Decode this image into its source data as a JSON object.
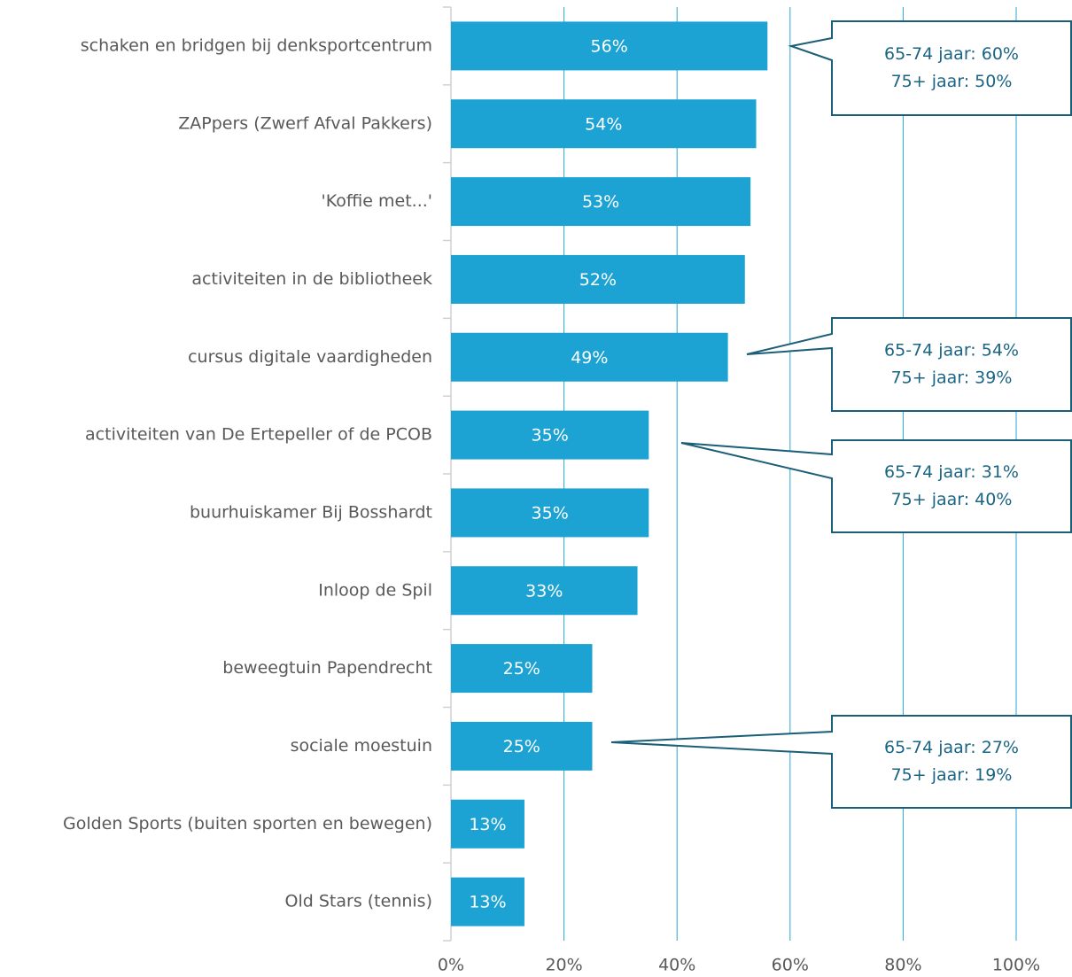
{
  "chart_data": {
    "type": "hbar",
    "categories": [
      "schaken en bridgen bij denksportcentrum",
      "ZAPpers (Zwerf Afval Pakkers)",
      "'Koffie met...'",
      "activiteiten in de bibliotheek",
      "cursus digitale vaardigheden",
      "activiteiten van De Ertepeller of de PCOB",
      "buurhuiskamer Bij Bosshardt",
      "Inloop de Spil",
      "beweegtuin Papendrecht",
      "sociale moestuin",
      "Golden Sports (buiten sporten en bewegen)",
      "Old Stars (tennis)"
    ],
    "values": [
      56,
      54,
      53,
      52,
      49,
      35,
      35,
      33,
      25,
      25,
      13,
      13
    ],
    "value_labels": [
      "56%",
      "54%",
      "53%",
      "52%",
      "49%",
      "35%",
      "35%",
      "33%",
      "25%",
      "25%",
      "13%",
      "13%"
    ],
    "color": "#1ca3d3",
    "xlim": [
      0,
      100
    ],
    "xticks": [
      {
        "value": 0,
        "label": "0%"
      },
      {
        "value": 20,
        "label": "20%"
      },
      {
        "value": 40,
        "label": "40%"
      },
      {
        "value": 60,
        "label": "60%"
      },
      {
        "value": 80,
        "label": "80%"
      },
      {
        "value": 100,
        "label": "100%"
      }
    ],
    "grid": true,
    "annotations": [
      [
        "65-74 jaar: 60%",
        "75+ jaar: 50%"
      ],
      [
        "65-74 jaar: 54%",
        "75+ jaar: 39%"
      ],
      [
        "65-74 jaar: 31%",
        "75+ jaar: 40%"
      ],
      [
        "65-74 jaar: 27%",
        "75+ jaar: 19%"
      ]
    ]
  }
}
